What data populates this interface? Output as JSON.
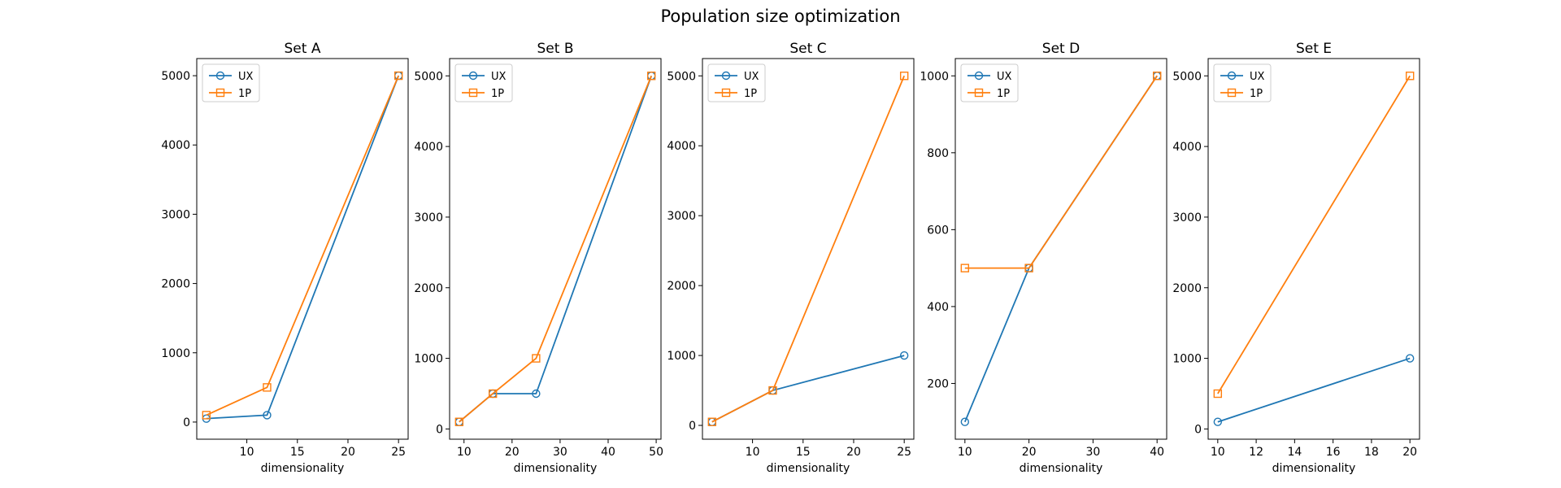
{
  "suptitle": "Population size optimization",
  "colors": {
    "UX": "#1f77b4",
    "1P": "#ff7f0e",
    "axis": "#000000"
  },
  "chart_data": [
    {
      "type": "line",
      "title": "Set A",
      "xlabel": "dimensionality",
      "ylabel": "",
      "xlim": [
        5.05,
        25.95
      ],
      "ylim": [
        -247.5,
        5247.5
      ],
      "xticks": [
        10,
        15,
        20,
        25
      ],
      "yticks": [
        0,
        1000,
        2000,
        3000,
        4000,
        5000
      ],
      "legend": "top-left",
      "grid": false,
      "series": [
        {
          "name": "UX",
          "marker": "circle",
          "x": [
            6,
            12,
            25
          ],
          "y": [
            50,
            100,
            5000
          ]
        },
        {
          "name": "1P",
          "marker": "square",
          "x": [
            6,
            12,
            25
          ],
          "y": [
            100,
            500,
            5000
          ]
        }
      ]
    },
    {
      "type": "line",
      "title": "Set B",
      "xlabel": "dimensionality",
      "ylabel": "",
      "xlim": [
        7,
        51
      ],
      "ylim": [
        -145,
        5245
      ],
      "xticks": [
        10,
        20,
        30,
        40,
        50
      ],
      "yticks": [
        0,
        1000,
        2000,
        3000,
        4000,
        5000
      ],
      "legend": "top-left",
      "grid": false,
      "series": [
        {
          "name": "UX",
          "marker": "circle",
          "x": [
            9,
            16,
            25,
            49
          ],
          "y": [
            100,
            500,
            500,
            5000
          ]
        },
        {
          "name": "1P",
          "marker": "square",
          "x": [
            9,
            16,
            25,
            49
          ],
          "y": [
            100,
            500,
            1000,
            5000
          ]
        }
      ]
    },
    {
      "type": "line",
      "title": "Set C",
      "xlabel": "dimensionality",
      "ylabel": "",
      "xlim": [
        5.05,
        25.95
      ],
      "ylim": [
        -197.5,
        5247.5
      ],
      "xticks": [
        10,
        15,
        20,
        25
      ],
      "yticks": [
        0,
        1000,
        2000,
        3000,
        4000,
        5000
      ],
      "legend": "top-left",
      "grid": false,
      "series": [
        {
          "name": "UX",
          "marker": "circle",
          "x": [
            6,
            12,
            25
          ],
          "y": [
            50,
            500,
            1000
          ]
        },
        {
          "name": "1P",
          "marker": "square",
          "x": [
            6,
            12,
            25
          ],
          "y": [
            50,
            500,
            5000
          ]
        }
      ]
    },
    {
      "type": "line",
      "title": "Set D",
      "xlabel": "dimensionality",
      "ylabel": "",
      "xlim": [
        8.5,
        41.5
      ],
      "ylim": [
        55,
        1045
      ],
      "xticks": [
        10,
        20,
        30,
        40
      ],
      "yticks": [
        200,
        400,
        600,
        800,
        1000
      ],
      "legend": "top-left",
      "grid": false,
      "series": [
        {
          "name": "UX",
          "marker": "circle",
          "x": [
            10,
            20,
            40
          ],
          "y": [
            100,
            500,
            1000
          ]
        },
        {
          "name": "1P",
          "marker": "square",
          "x": [
            10,
            20,
            40
          ],
          "y": [
            500,
            500,
            1000
          ]
        }
      ]
    },
    {
      "type": "line",
      "title": "Set E",
      "xlabel": "dimensionality",
      "ylabel": "",
      "xlim": [
        9.5,
        20.5
      ],
      "ylim": [
        -145,
        5245
      ],
      "xticks": [
        10,
        12,
        14,
        16,
        18,
        20
      ],
      "yticks": [
        0,
        1000,
        2000,
        3000,
        4000,
        5000
      ],
      "legend": "top-left",
      "grid": false,
      "series": [
        {
          "name": "UX",
          "marker": "circle",
          "x": [
            10,
            20
          ],
          "y": [
            100,
            1000
          ]
        },
        {
          "name": "1P",
          "marker": "square",
          "x": [
            10,
            20
          ],
          "y": [
            500,
            5000
          ]
        }
      ]
    }
  ]
}
